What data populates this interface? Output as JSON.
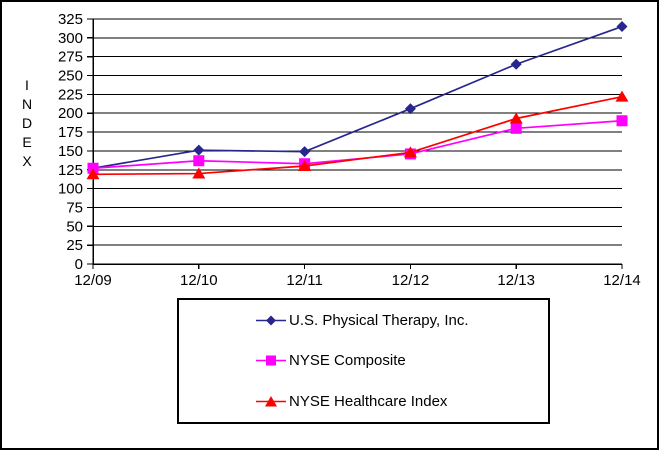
{
  "chart_data": {
    "type": "line",
    "title": "",
    "xlabel": "",
    "ylabel": "INDEX",
    "categories": [
      "12/09",
      "12/10",
      "12/11",
      "12/12",
      "12/13",
      "12/14"
    ],
    "y_axis": {
      "min": 0,
      "max": 325,
      "step": 25
    },
    "grid": "horizontal",
    "legend_position": "bottom",
    "series": [
      {
        "name": "U.S. Physical Therapy, Inc.",
        "marker": "diamond",
        "color": "#26268C",
        "values": [
          127,
          151,
          149,
          206,
          265,
          315
        ]
      },
      {
        "name": "NYSE Composite",
        "marker": "square",
        "color": "#FF00FF",
        "values": [
          127,
          137,
          133,
          146,
          180,
          190
        ]
      },
      {
        "name": "NYSE Healthcare Index",
        "marker": "triangle",
        "color": "#FF0000",
        "values": [
          119,
          120,
          130,
          148,
          193,
          222
        ]
      }
    ]
  }
}
